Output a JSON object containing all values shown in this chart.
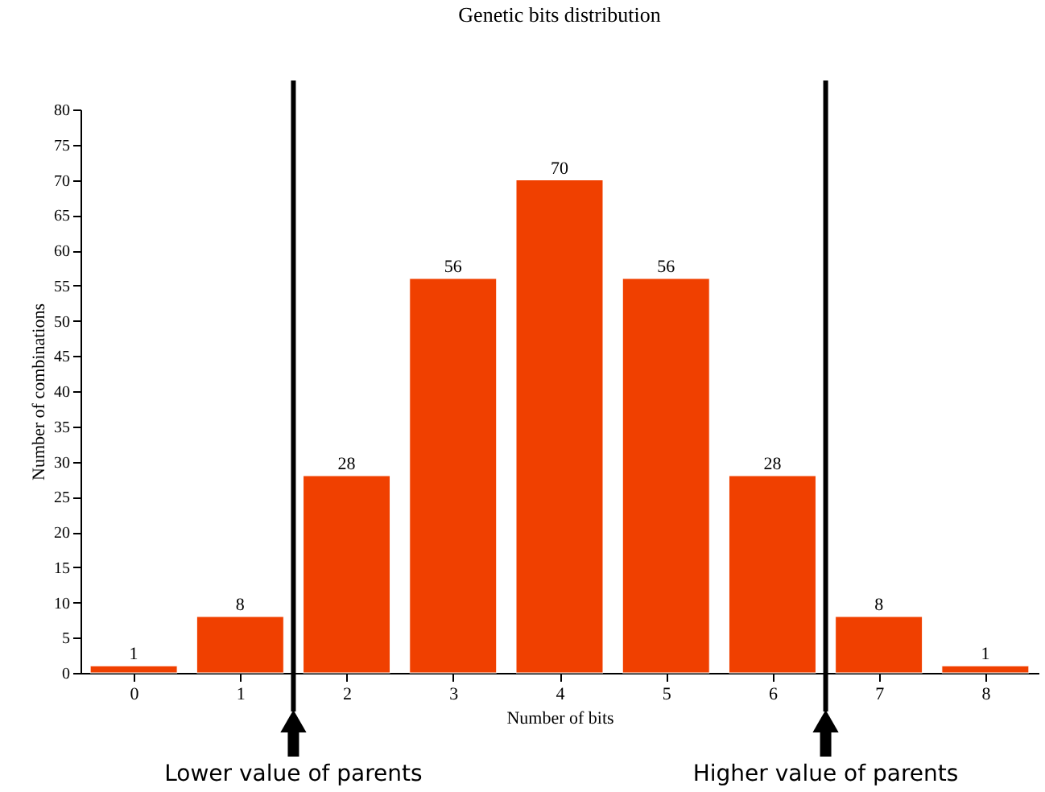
{
  "chart_data": {
    "type": "bar",
    "title": "Genetic bits distribution",
    "xlabel": "Number of bits",
    "ylabel": "Number of combinations",
    "x": [
      0,
      1,
      2,
      3,
      4,
      5,
      6,
      7,
      8
    ],
    "values": [
      1,
      8,
      28,
      56,
      70,
      56,
      28,
      8,
      1
    ],
    "color": "#f04000",
    "xlim": [
      -0.5,
      8.5
    ],
    "xticks": [
      0,
      1,
      2,
      3,
      4,
      5,
      6,
      7,
      8
    ],
    "ylim": [
      0,
      80
    ],
    "yticks": [
      0,
      5,
      10,
      15,
      20,
      25,
      30,
      35,
      40,
      45,
      50,
      55,
      60,
      65,
      70,
      75,
      80
    ],
    "data_labels": true,
    "grid": false,
    "ref_lines": [
      {
        "axis": "x",
        "value": 1.5,
        "label": "Lower value of parents",
        "color": "#000000"
      },
      {
        "axis": "x",
        "value": 6.5,
        "label": "Higher value of parents",
        "color": "#000000"
      }
    ]
  }
}
